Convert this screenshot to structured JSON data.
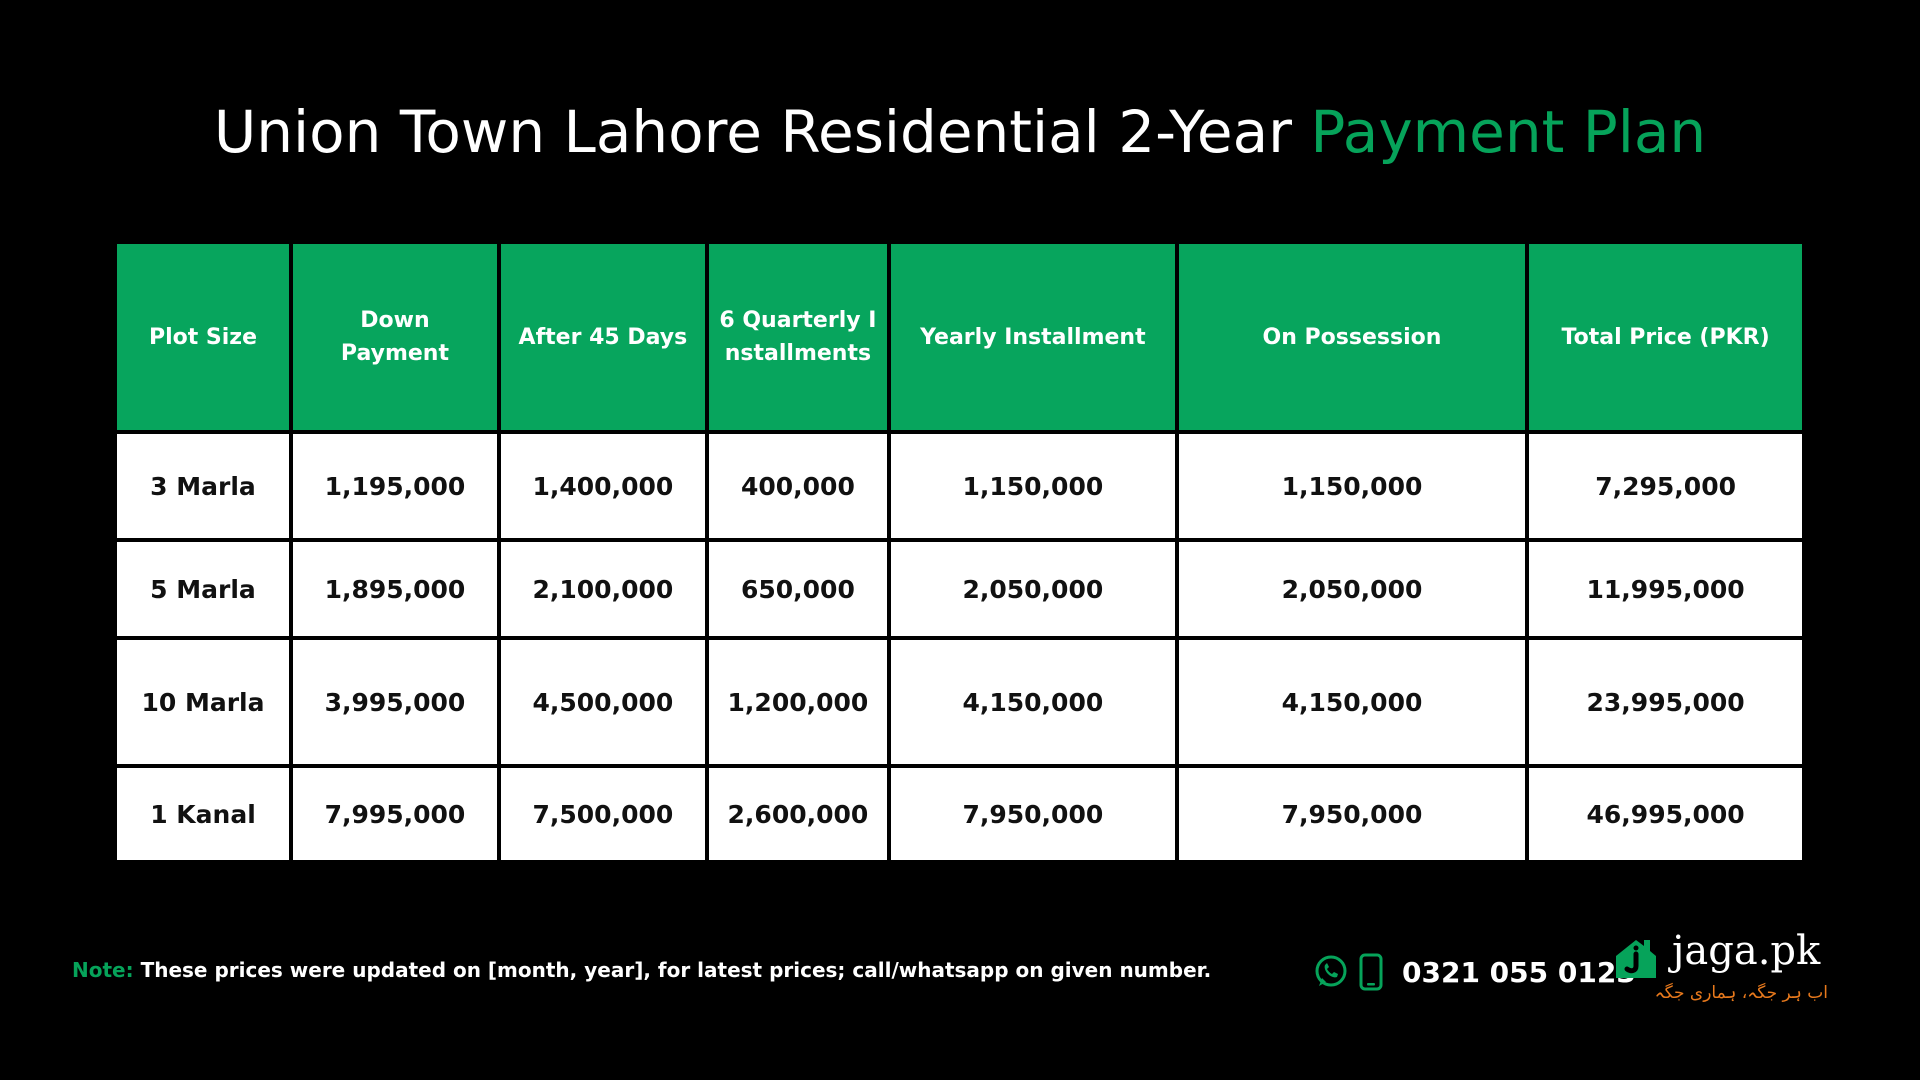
{
  "title": {
    "main": "Union Town Lahore Residential 2-Year ",
    "accent": "Payment Plan"
  },
  "colors": {
    "accent_green": "#06a35a",
    "header_green": "#07a55d",
    "background": "#000000",
    "tagline_orange": "#e8791c"
  },
  "table": {
    "headers": [
      "Plot Size",
      "Down Payment",
      "After 45 Days",
      "6 Quarterly Installments",
      "Yearly Installment",
      "On Possession",
      "Total Price (PKR)"
    ],
    "rows": [
      [
        "3 Marla",
        "1,195,000",
        "1,400,000",
        "400,000",
        "1,150,000",
        "1,150,000",
        "7,295,000"
      ],
      [
        "5 Marla",
        "1,895,000",
        "2,100,000",
        "650,000",
        "2,050,000",
        "2,050,000",
        "11,995,000"
      ],
      [
        "10 Marla",
        "3,995,000",
        "4,500,000",
        "1,200,000",
        "4,150,000",
        "4,150,000",
        "23,995,000"
      ],
      [
        "1 Kanal",
        "7,995,000",
        "7,500,000",
        "2,600,000",
        "7,950,000",
        "7,950,000",
        "46,995,000"
      ]
    ]
  },
  "footer": {
    "note_label": "Note:",
    "note_text": " These prices were updated on [month, year], for latest prices; call/whatsapp on given number.",
    "phone": "0321 055 0123",
    "icons": [
      "whatsapp-icon",
      "mobile-phone-icon",
      "house-logo-icon"
    ]
  },
  "brand": {
    "name": "jaga.pk",
    "tagline": "اب ہر جگہ، ہماری جگہ"
  }
}
